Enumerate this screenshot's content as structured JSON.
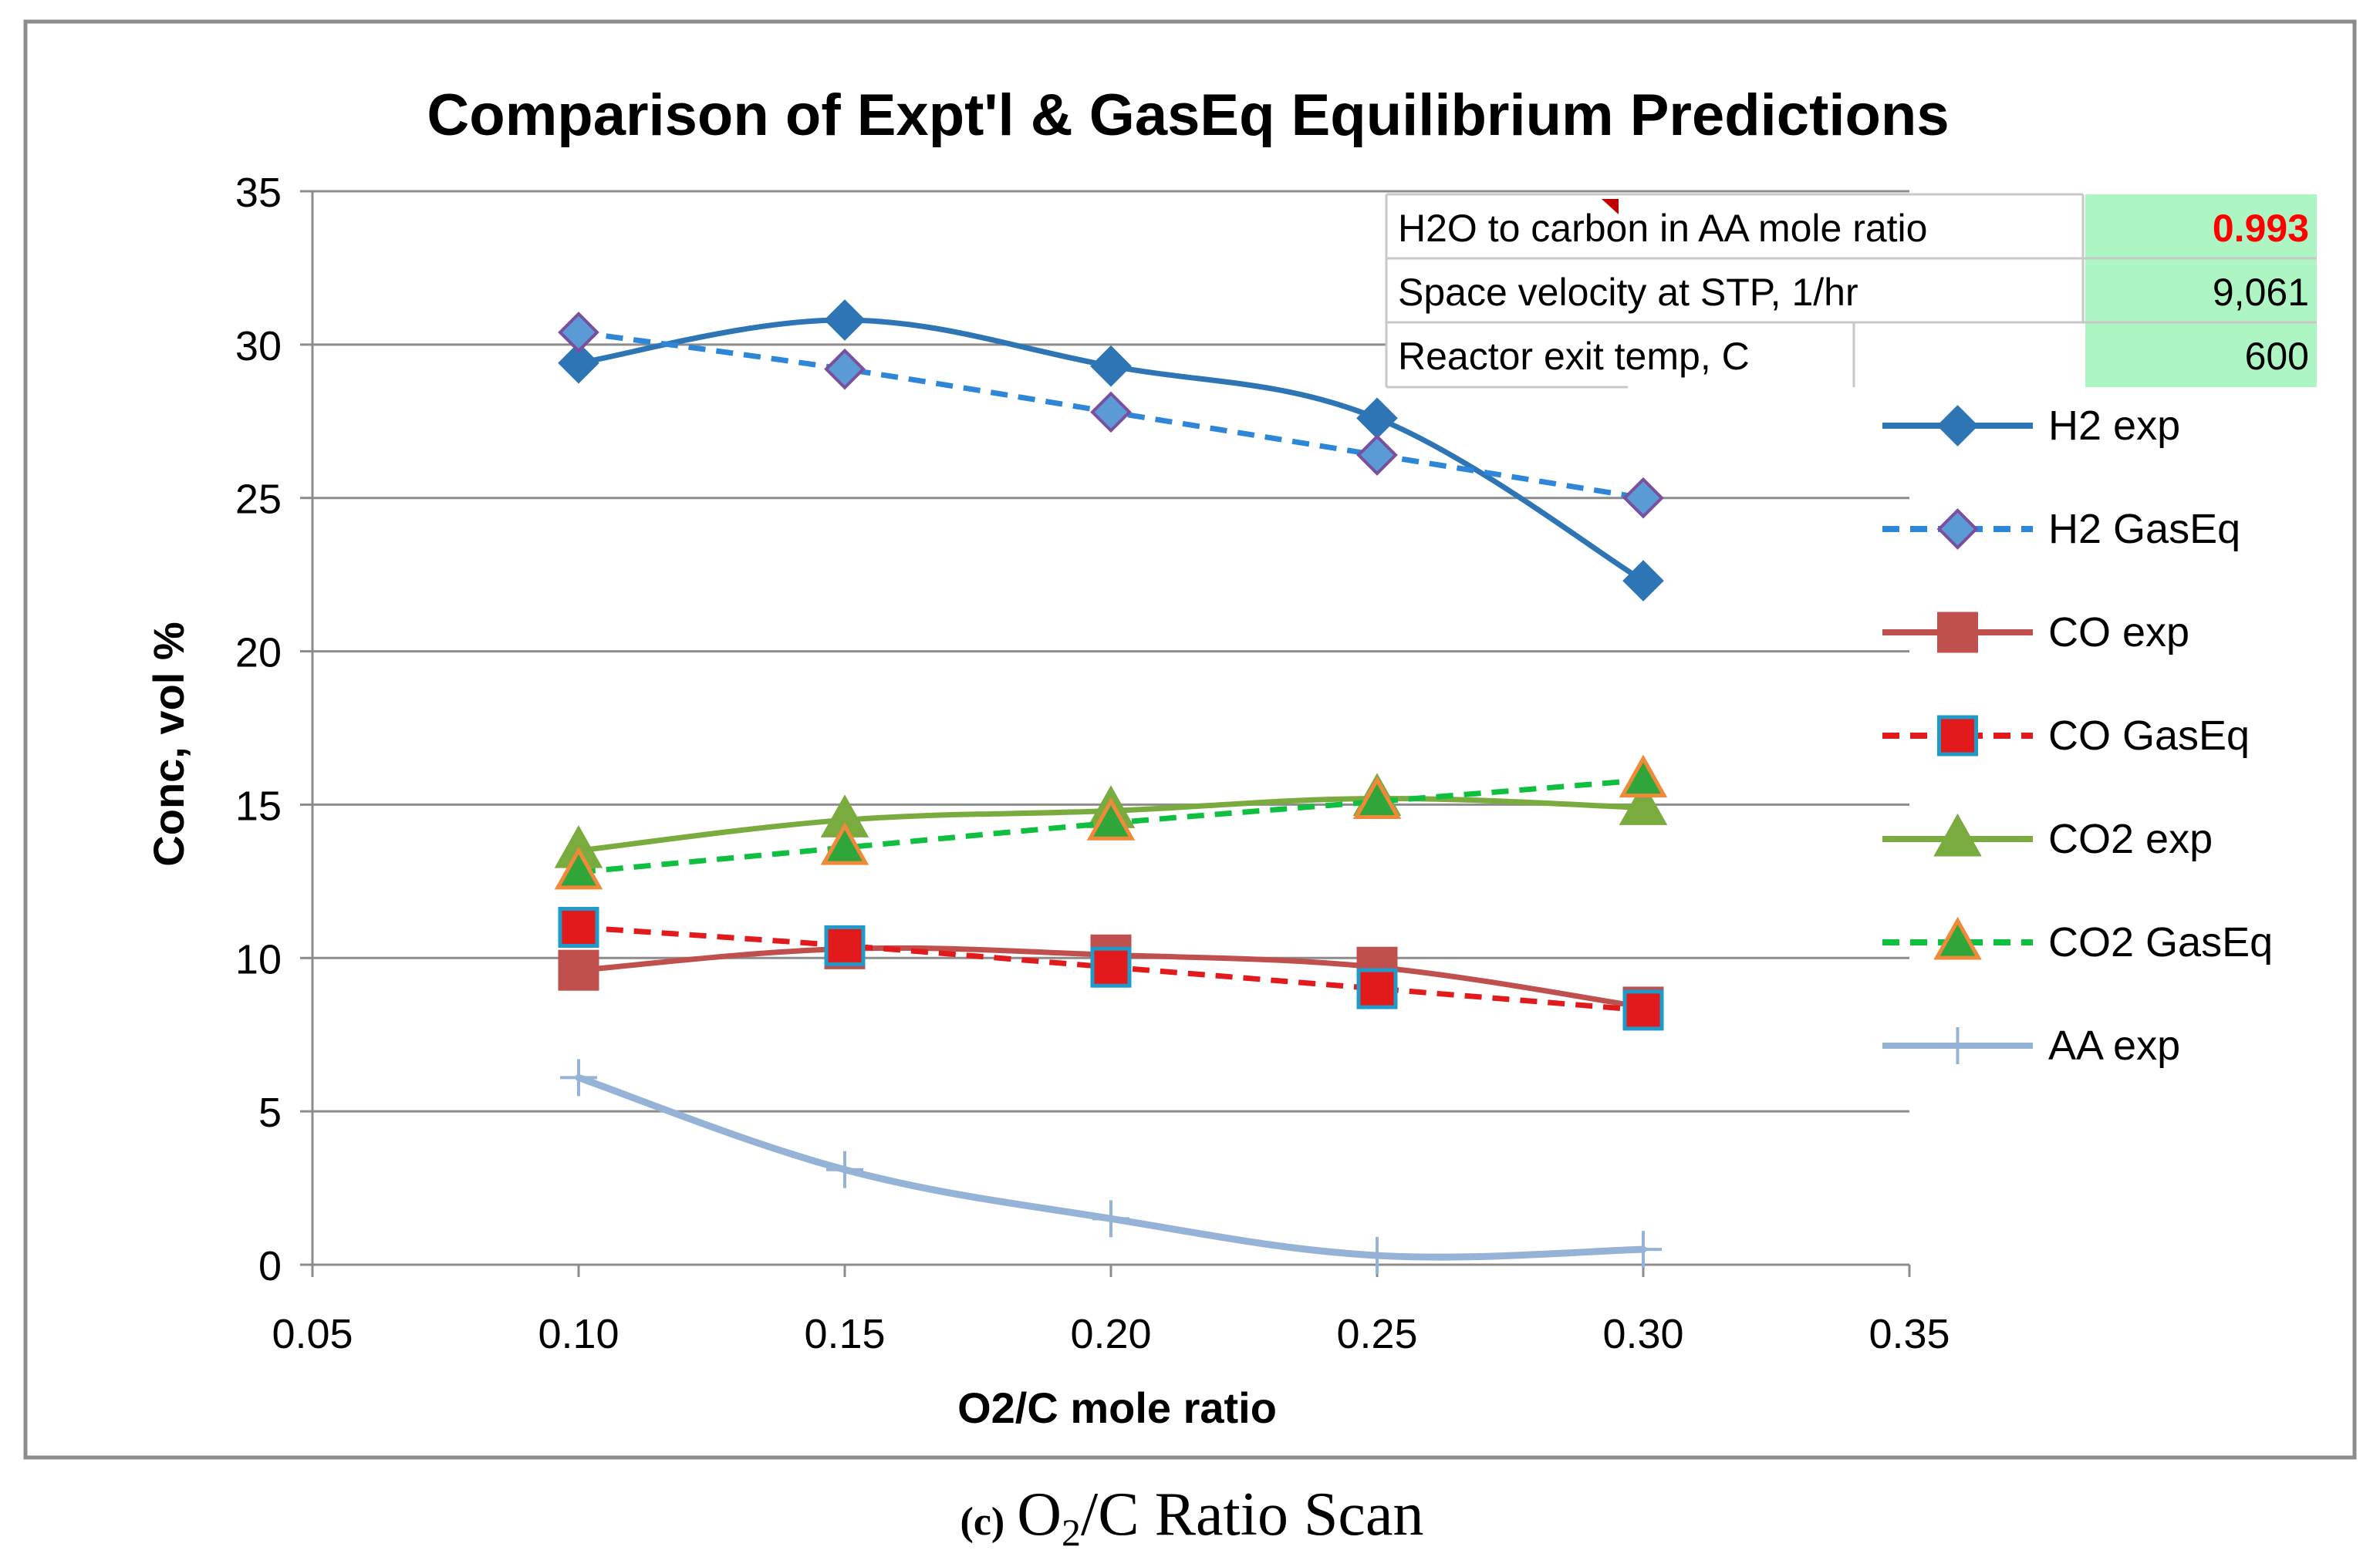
{
  "chart_data": {
    "type": "line",
    "title": "Comparison of Expt'l & GasEq Equilibrium Predictions",
    "xlabel": "O2/C mole ratio",
    "ylabel": "Conc, vol %",
    "xlim": [
      0.05,
      0.35
    ],
    "ylim": [
      0,
      35
    ],
    "x_ticks": [
      "0.05",
      "0.10",
      "0.15",
      "0.20",
      "0.25",
      "0.30",
      "0.35"
    ],
    "y_ticks": [
      "0",
      "5",
      "10",
      "15",
      "20",
      "25",
      "30",
      "35"
    ],
    "grid": "horizontal",
    "legend_position": "right",
    "x": [
      0.1,
      0.15,
      0.2,
      0.25,
      0.3
    ],
    "series": [
      {
        "name": "H2 exp",
        "values": [
          29.4,
          30.8,
          29.3,
          27.6,
          22.3
        ],
        "color": "#2E75B6",
        "dash": "solid",
        "marker": "diamond",
        "marker_fill": "#2E75B6",
        "marker_stroke": "#2E75B6"
      },
      {
        "name": "H2 GasEq",
        "values": [
          30.4,
          29.2,
          27.8,
          26.4,
          25.0
        ],
        "color": "#2E86D8",
        "dash": "dashed",
        "marker": "diamond",
        "marker_fill": "#5B9BD5",
        "marker_stroke": "#7A4F9E"
      },
      {
        "name": "CO exp",
        "values": [
          9.6,
          10.3,
          10.1,
          9.7,
          8.4
        ],
        "color": "#C0504D",
        "dash": "solid",
        "marker": "square",
        "marker_fill": "#C0504D",
        "marker_stroke": "#C0504D"
      },
      {
        "name": "CO GasEq",
        "values": [
          11.0,
          10.4,
          9.7,
          9.0,
          8.3
        ],
        "color": "#E31A1C",
        "dash": "dashed",
        "marker": "square",
        "marker_fill": "#E31A1C",
        "marker_stroke": "#1F9AC9"
      },
      {
        "name": "CO2 exp",
        "values": [
          13.5,
          14.5,
          14.8,
          15.2,
          14.9
        ],
        "color": "#7AAB3E",
        "dash": "solid",
        "marker": "triangle",
        "marker_fill": "#7AAB3E",
        "marker_stroke": "#7AAB3E"
      },
      {
        "name": "CO2 GasEq",
        "values": [
          12.8,
          13.6,
          14.4,
          15.1,
          15.8
        ],
        "color": "#0FBF3F",
        "dash": "dashed",
        "marker": "triangle",
        "marker_fill": "#2FA53A",
        "marker_stroke": "#F0893A"
      },
      {
        "name": "AA exp",
        "values": [
          6.1,
          3.1,
          1.5,
          0.3,
          0.5
        ],
        "color": "#95B3D7",
        "dash": "solid",
        "marker": "plus",
        "marker_fill": "#95B3D7",
        "marker_stroke": "#95B3D7"
      }
    ]
  },
  "info_table": [
    {
      "label": "H2O to carbon in AA mole ratio",
      "value": "0.993"
    },
    {
      "label": "Space velocity at STP, 1/hr",
      "value": "9,061"
    },
    {
      "label": "Reactor exit temp, C",
      "value": "600"
    }
  ],
  "info_colors": {
    "highlight_bg": "#ADF5C3",
    "red_value": "#FF0000"
  },
  "caption": {
    "prefix": "(c)",
    "text_a": "O",
    "subscript": "2",
    "text_b": "/C Ratio Scan"
  }
}
